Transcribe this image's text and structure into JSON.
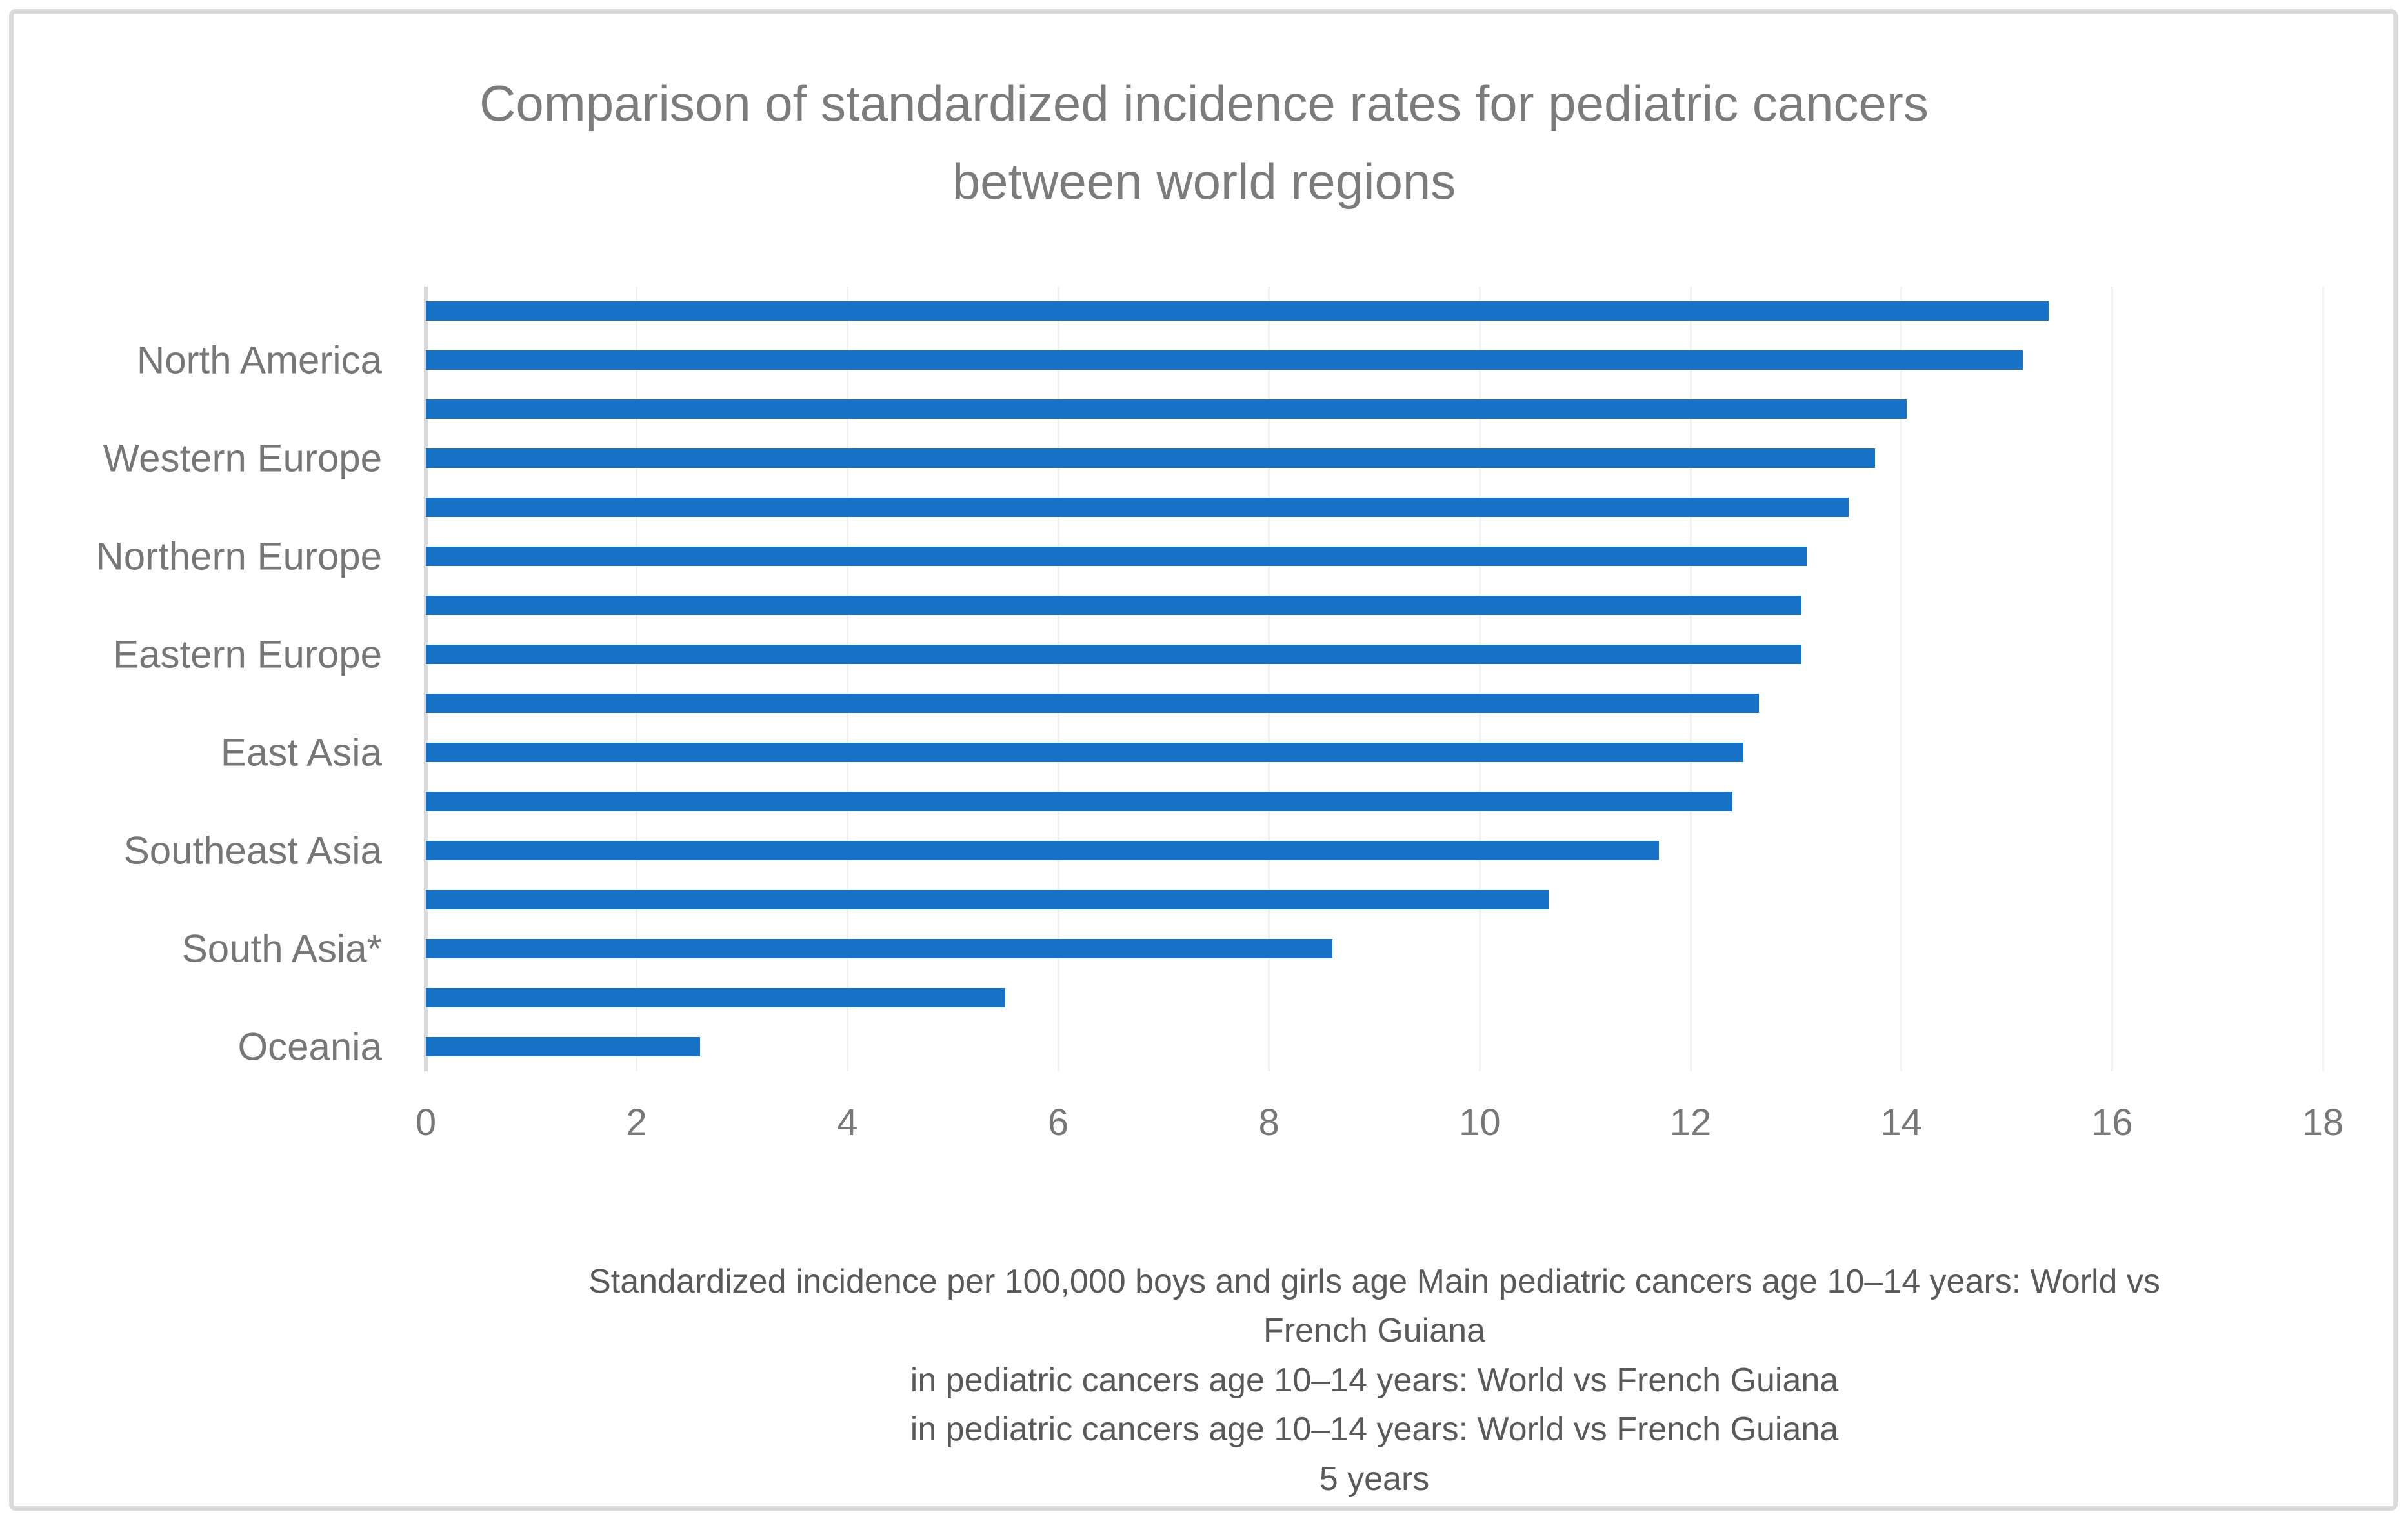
{
  "chart_data": {
    "type": "bar",
    "orientation": "horizontal",
    "title_lines": [
      "Comparison of standardized incidence rates for pediatric cancers",
      "between world regions"
    ],
    "bars": [
      {
        "label": "",
        "value": 15.4
      },
      {
        "label": "North America",
        "value": 15.15
      },
      {
        "label": "",
        "value": 14.05
      },
      {
        "label": "Western Europe",
        "value": 13.75
      },
      {
        "label": "",
        "value": 13.5
      },
      {
        "label": "Northern Europe",
        "value": 13.1
      },
      {
        "label": "",
        "value": 13.05
      },
      {
        "label": "Eastern Europe",
        "value": 13.05
      },
      {
        "label": "",
        "value": 12.65
      },
      {
        "label": "East Asia",
        "value": 12.5
      },
      {
        "label": "",
        "value": 12.4
      },
      {
        "label": "Southeast Asia",
        "value": 11.7
      },
      {
        "label": "",
        "value": 10.65
      },
      {
        "label": "South Asia*",
        "value": 8.6
      },
      {
        "label": "",
        "value": 5.5
      },
      {
        "label": "Oceania",
        "value": 2.6
      }
    ],
    "xlim": [
      0,
      18
    ],
    "xticks": [
      0,
      2,
      4,
      6,
      8,
      10,
      12,
      14,
      16,
      18
    ],
    "grid": true,
    "legend": false,
    "xlabel": "",
    "ylabel": "",
    "caption_lines": [
      "Standardized incidence per 100,000 boys and girls age Main pediatric cancers age 10–14 years: World vs",
      "French Guiana",
      "in pediatric cancers age 10–14 years: World vs French Guiana",
      "in pediatric cancers age 10–14 years: World vs French Guiana",
      "5 years"
    ],
    "colors": {
      "bar": "#1772C6",
      "title": "#7C7C7C",
      "axis_labels": "#777777",
      "caption": "#595959",
      "gridline": "#F1F1F1",
      "axis_line": "#D9D9D9",
      "frame_border": "#DBDBDB",
      "background": "#FFFFFF"
    }
  }
}
